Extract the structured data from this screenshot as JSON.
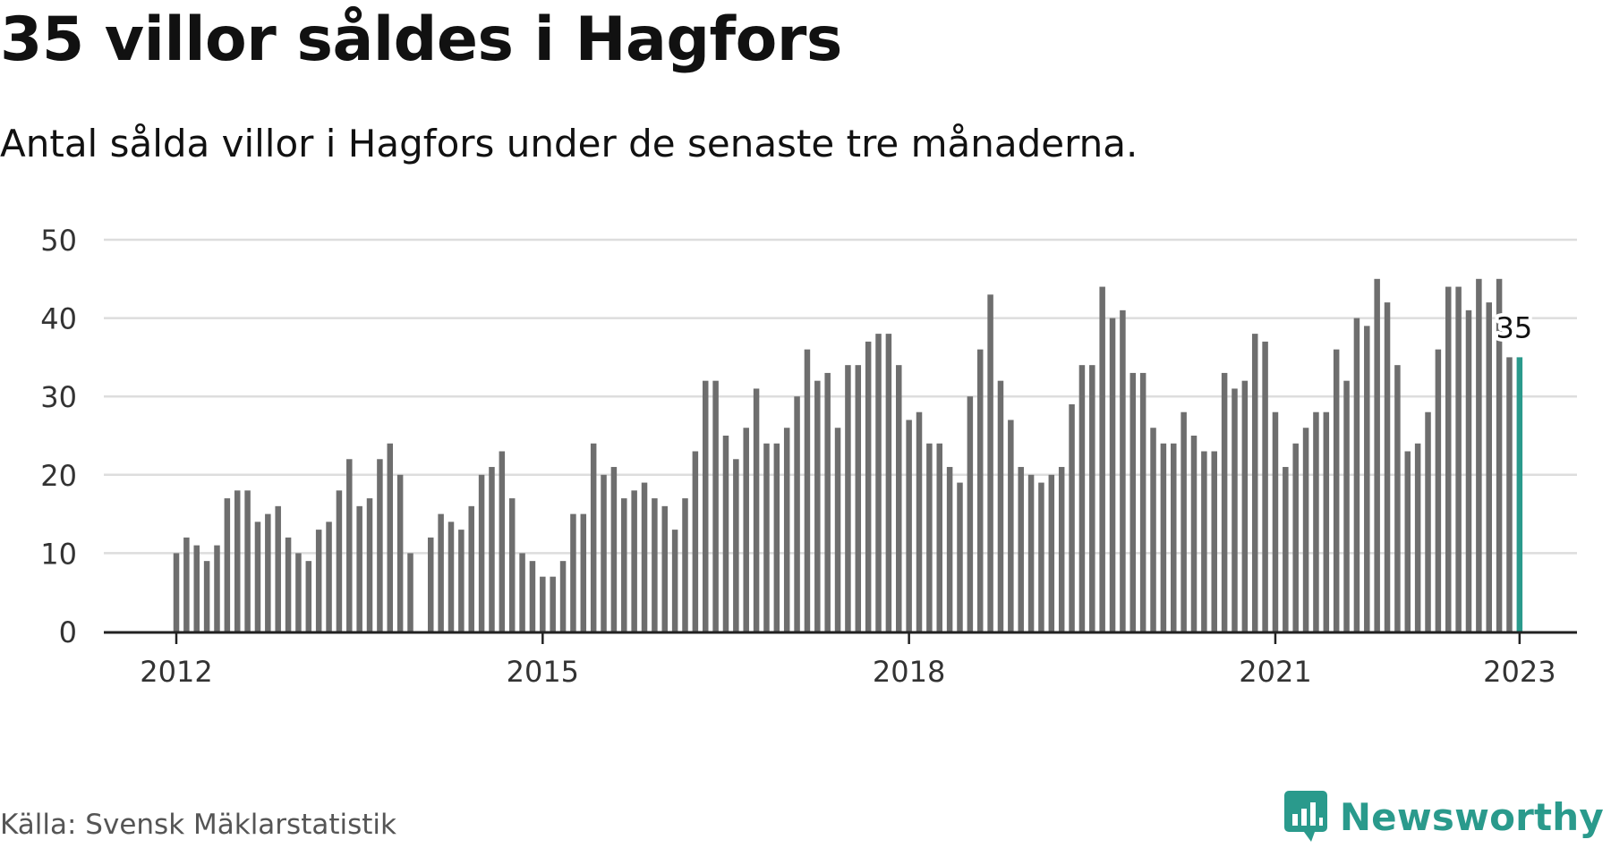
{
  "header": {
    "title": "35 villor såldes i Hagfors",
    "subtitle": "Antal sålda villor i Hagfors under de senaste tre månaderna."
  },
  "footer": {
    "source": "Källa: Svensk Mäklarstatistik",
    "brand": "Newsworthy",
    "brand_icon": "bar-chart-speech-bubble-icon"
  },
  "colors": {
    "bar": "#6e6e6e",
    "highlight": "#2a9a8c",
    "grid": "#dddddd",
    "axis": "#222222",
    "text": "#333333"
  },
  "chart_data": {
    "type": "bar",
    "x_start": "2012-01",
    "x_end": "2023-01",
    "x_interval": "month",
    "xticks": [
      "2012",
      "2015",
      "2018",
      "2021",
      "2023"
    ],
    "xtick_positions": [
      "2012-01",
      "2015-01",
      "2018-01",
      "2021-01",
      "2023-01"
    ],
    "yticks": [
      0,
      10,
      20,
      30,
      40,
      50
    ],
    "ylim": [
      0,
      50
    ],
    "grid": true,
    "highlight_label": "35",
    "values": [
      10,
      12,
      11,
      9,
      11,
      17,
      18,
      18,
      14,
      15,
      16,
      12,
      10,
      9,
      13,
      14,
      18,
      22,
      16,
      17,
      22,
      24,
      20,
      10,
      0,
      12,
      15,
      14,
      13,
      16,
      20,
      21,
      23,
      17,
      10,
      9,
      7,
      7,
      9,
      15,
      15,
      24,
      20,
      21,
      17,
      18,
      19,
      17,
      16,
      13,
      17,
      23,
      32,
      32,
      25,
      22,
      26,
      31,
      24,
      24,
      26,
      30,
      36,
      32,
      33,
      26,
      34,
      34,
      37,
      38,
      38,
      34,
      27,
      28,
      24,
      24,
      21,
      19,
      30,
      36,
      43,
      32,
      27,
      21,
      20,
      19,
      20,
      21,
      29,
      34,
      34,
      44,
      40,
      41,
      33,
      33,
      26,
      24,
      24,
      28,
      25,
      23,
      23,
      33,
      31,
      32,
      38,
      37,
      28,
      21,
      24,
      26,
      28,
      28,
      36,
      32,
      40,
      39,
      45,
      42,
      34,
      23,
      24,
      28,
      36,
      44,
      44,
      41,
      45,
      42,
      45,
      35,
      35
    ]
  }
}
